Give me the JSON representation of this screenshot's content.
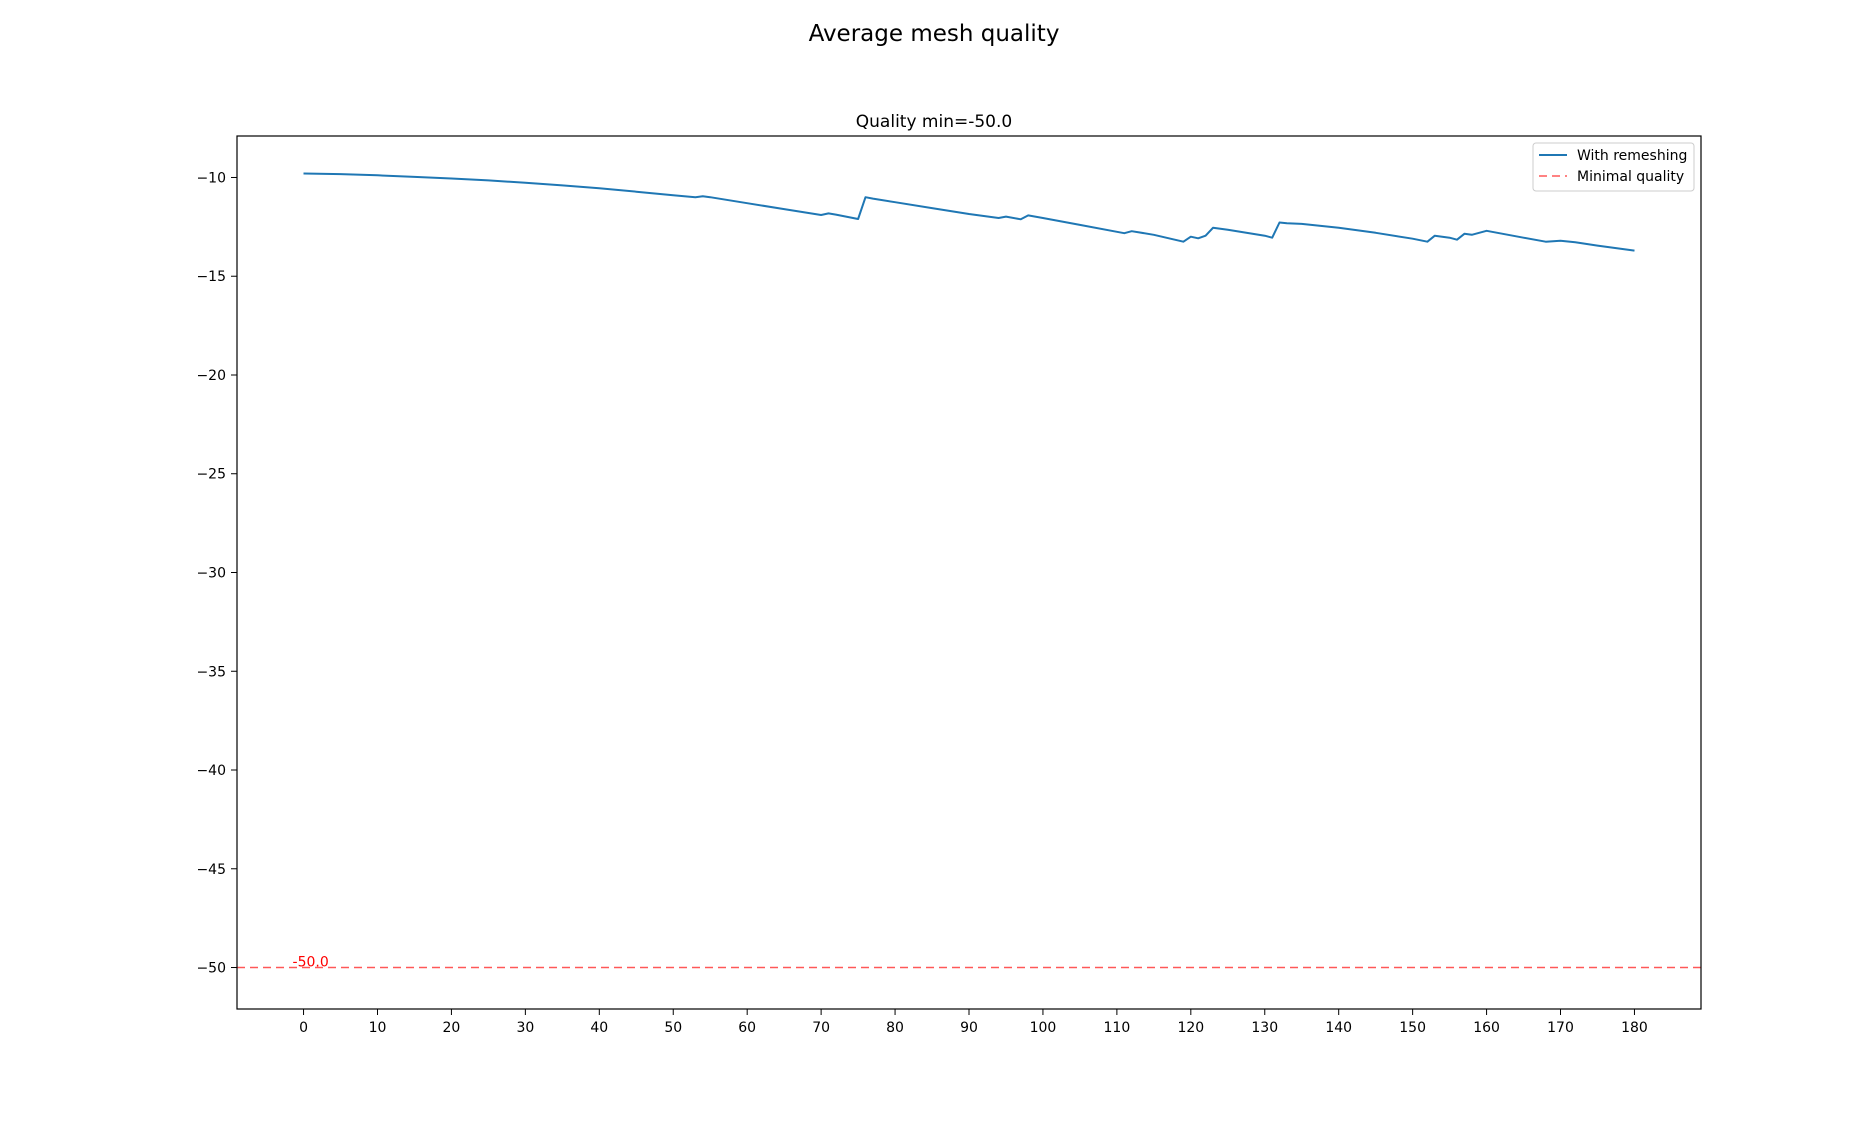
{
  "figure_title": "Average mesh quality",
  "chart_data": {
    "type": "line",
    "title": "Quality min=-50.0",
    "xlabel": "",
    "ylabel": "",
    "xlim": [
      -9,
      189
    ],
    "ylim": [
      -52.1,
      -7.9
    ],
    "xticks": [
      0,
      10,
      20,
      30,
      40,
      50,
      60,
      70,
      80,
      90,
      100,
      110,
      120,
      130,
      140,
      150,
      160,
      170,
      180
    ],
    "yticks": [
      -10,
      -15,
      -20,
      -25,
      -30,
      -35,
      -40,
      -45,
      -50
    ],
    "grid": false,
    "legend_position": "top-right",
    "series": [
      {
        "name": "With remeshing",
        "color": "#1f77b4",
        "style": "solid",
        "x": [
          0,
          5,
          10,
          15,
          20,
          25,
          30,
          35,
          40,
          45,
          50,
          53,
          54,
          55,
          60,
          65,
          70,
          71,
          72,
          75,
          76,
          77,
          80,
          85,
          90,
          94,
          95,
          97,
          98,
          100,
          105,
          110,
          111,
          112,
          113,
          115,
          119,
          120,
          121,
          122,
          123,
          125,
          130,
          131,
          132,
          133,
          135,
          140,
          145,
          150,
          152,
          153,
          155,
          156,
          157,
          158,
          160,
          165,
          168,
          170,
          172,
          175,
          180
        ],
        "y": [
          -9.8,
          -9.83,
          -9.89,
          -9.97,
          -10.05,
          -10.15,
          -10.27,
          -10.4,
          -10.55,
          -10.72,
          -10.9,
          -11.0,
          -10.95,
          -11.0,
          -11.3,
          -11.6,
          -11.9,
          -11.82,
          -11.88,
          -12.1,
          -11.0,
          -11.07,
          -11.25,
          -11.55,
          -11.85,
          -12.05,
          -11.98,
          -12.12,
          -11.92,
          -12.05,
          -12.4,
          -12.75,
          -12.82,
          -12.72,
          -12.78,
          -12.9,
          -13.25,
          -13.0,
          -13.08,
          -12.95,
          -12.55,
          -12.65,
          -12.95,
          -13.05,
          -12.28,
          -12.32,
          -12.35,
          -12.55,
          -12.8,
          -13.1,
          -13.25,
          -12.95,
          -13.05,
          -13.15,
          -12.85,
          -12.9,
          -12.7,
          -13.05,
          -13.25,
          -13.2,
          -13.28,
          -13.45,
          -13.7
        ]
      }
    ],
    "threshold": {
      "name": "Minimal quality",
      "value": -50.0,
      "label": "-50.0",
      "color": "#ff0000",
      "style": "dashed"
    }
  }
}
